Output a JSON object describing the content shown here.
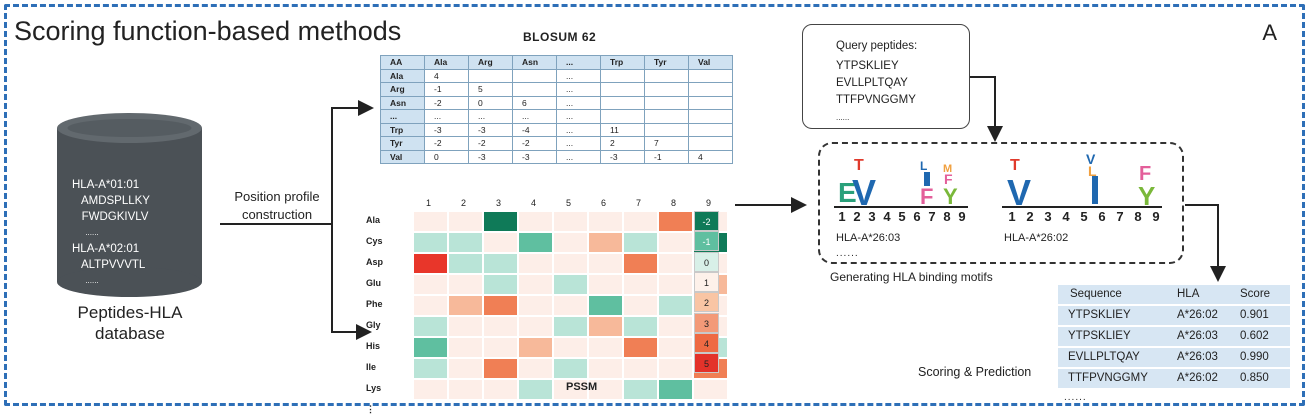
{
  "title": "Scoring function-based methods",
  "panel_letter": "A",
  "database": {
    "lines": [
      "HLA-A*01:01",
      "   AMDSPLLKY",
      "   FWDGKIVLV",
      "      ......",
      "HLA-A*02:01",
      "   ALTPVVVTL",
      "      ......"
    ],
    "label_line1": "Peptides-HLA",
    "label_line2": "database"
  },
  "arrow_label_line1": "Position profile",
  "arrow_label_line2": "construction",
  "blosum": {
    "title": "BLOSUM 62",
    "header": [
      "AA",
      "Ala",
      "Arg",
      "Asn",
      "...",
      "Trp",
      "Tyr",
      "Val"
    ],
    "rows": [
      [
        "Ala",
        "4",
        "",
        "",
        "...",
        "",
        "",
        ""
      ],
      [
        "Arg",
        "-1",
        "5",
        "",
        "...",
        "",
        "",
        ""
      ],
      [
        "Asn",
        "-2",
        "0",
        "6",
        "...",
        "",
        "",
        ""
      ],
      [
        "...",
        "...",
        "...",
        "...",
        "...",
        "",
        "",
        ""
      ],
      [
        "Trp",
        "-3",
        "-3",
        "-4",
        "...",
        "11",
        "",
        ""
      ],
      [
        "Tyr",
        "-2",
        "-2",
        "-2",
        "...",
        "2",
        "7",
        ""
      ],
      [
        "Val",
        "0",
        "-3",
        "-3",
        "...",
        "-3",
        "-1",
        "4"
      ]
    ]
  },
  "pssm": {
    "label": "PSSM",
    "columns": [
      "1",
      "2",
      "3",
      "4",
      "5",
      "6",
      "7",
      "8",
      "9",
      "..."
    ],
    "rows": [
      "Ala",
      "Cys",
      "Asp",
      "Glu",
      "Phe",
      "Gly",
      "His",
      "Ile",
      "Lys",
      "⋮"
    ],
    "legend": [
      "-2",
      "-1",
      "0",
      "1",
      "2",
      "3",
      "4",
      "5"
    ],
    "colors": {
      "g2": "#0f7a58",
      "g1": "#5fbfa0",
      "g0": "#b9e4d7",
      "n": "#fdeee8",
      "o1": "#f7b99a",
      "o2": "#f07f55",
      "r": "#e8362a"
    },
    "grid": [
      [
        "n",
        "n",
        "g2",
        "n",
        "n",
        "n",
        "n",
        "o2",
        "n"
      ],
      [
        "g0",
        "g0",
        "n",
        "g1",
        "n",
        "o1",
        "g0",
        "n",
        "g2"
      ],
      [
        "r",
        "g0",
        "g0",
        "n",
        "n",
        "n",
        "o2",
        "n",
        "n"
      ],
      [
        "n",
        "n",
        "g0",
        "n",
        "g0",
        "n",
        "n",
        "n",
        "o1"
      ],
      [
        "n",
        "o1",
        "o2",
        "n",
        "n",
        "g1",
        "n",
        "g0",
        "n"
      ],
      [
        "g0",
        "n",
        "n",
        "n",
        "g0",
        "o1",
        "g0",
        "n",
        "n"
      ],
      [
        "g1",
        "n",
        "n",
        "o1",
        "n",
        "n",
        "o2",
        "n",
        "g0"
      ],
      [
        "g0",
        "n",
        "o2",
        "n",
        "g0",
        "n",
        "n",
        "n",
        "o2"
      ],
      [
        "n",
        "n",
        "n",
        "g0",
        "n",
        "n",
        "g0",
        "g1",
        "n"
      ]
    ],
    "legend_colors": [
      "#0f7a58",
      "#5fbfa0",
      "#d8f0e8",
      "#fdf1ea",
      "#f9c5a4",
      "#f39a78",
      "#ee6a43",
      "#e3322a"
    ]
  },
  "query": {
    "title": "Query peptides:",
    "lines": [
      "YTPSKLIEY",
      "EVLLPLTQAY",
      "TTFPVNGGMY",
      "......"
    ]
  },
  "motifs": {
    "positions": [
      "1",
      "2",
      "3",
      "4",
      "5",
      "6",
      "7",
      "8",
      "9"
    ],
    "motif1_label": "HLA-A*26:03",
    "motif2_label": "HLA-A*26:02",
    "dots": "......",
    "caption": "Generating HLA binding motifs",
    "letter_colors": {
      "E": "#2aa07a",
      "V": "#1f68b0",
      "T": "#e03a2c",
      "F": "#e35f9a",
      "Y": "#7ab83a",
      "L": "#1f68b0",
      "I": "#1f68b0",
      "M": "#f0a040"
    }
  },
  "scores": {
    "headers": [
      "Sequence",
      "HLA",
      "Score"
    ],
    "rows": [
      [
        "YTPSKLIEY",
        "A*26:02",
        "0.901"
      ],
      [
        "YTPSKLIEY",
        "A*26:03",
        "0.602"
      ],
      [
        "EVLLPLTQAY",
        "A*26:03",
        "0.990"
      ],
      [
        "TTFPVNGGMY",
        "A*26:02",
        "0.850"
      ]
    ],
    "dots": "......",
    "caption": "Scoring & Prediction"
  }
}
